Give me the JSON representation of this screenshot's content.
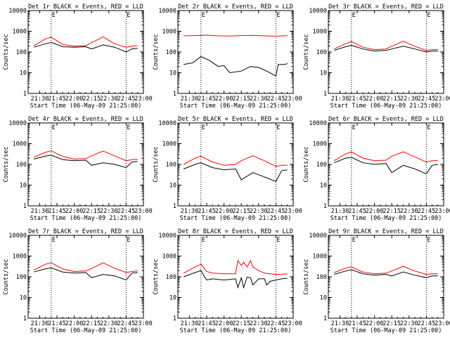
{
  "colors": {
    "events": "#000000",
    "lld": "#ff0000",
    "frame": "#000000",
    "background": "#ffffff"
  },
  "chart_data": [
    {
      "type": "line",
      "title": "Det 1r BLACK = Events, RED = LLD",
      "xlabel": "Start Time (06-May-09 21:25:00)",
      "ylabel": "Counts/sec",
      "x_tick_labels": [
        "21:30",
        "21:45",
        "22:00",
        "22:15",
        "22:30",
        "22:45",
        "23:00"
      ],
      "y_tick_labels": [
        "1",
        "10",
        "100",
        "1000",
        "10000"
      ],
      "yscale": "log",
      "ylim": [
        1,
        10000
      ],
      "xlim_min": [
        -5,
        95
      ],
      "markers": [
        15,
        80
      ],
      "marker_label": "E",
      "series": [
        {
          "color": "#000000",
          "min": [
            0,
            10,
            15,
            25,
            35,
            45,
            50,
            60,
            70,
            80,
            85,
            90
          ],
          "values": [
            170,
            250,
            290,
            180,
            170,
            180,
            140,
            220,
            170,
            100,
            140,
            150
          ]
        },
        {
          "color": "#ff0000",
          "min": [
            0,
            10,
            15,
            25,
            35,
            45,
            50,
            60,
            70,
            80,
            85,
            90
          ],
          "values": [
            200,
            430,
            520,
            230,
            190,
            200,
            280,
            540,
            250,
            170,
            190,
            200
          ]
        }
      ]
    },
    {
      "type": "line",
      "title": "Det 2r BLACK = Events, RED = LLD",
      "xlabel": "Start Time (06-May-09 21:25:00)",
      "ylabel": "Counts/sec",
      "x_tick_labels": [
        "21:30",
        "21:45",
        "22:00",
        "22:15",
        "22:30",
        "22:45",
        "23:00"
      ],
      "y_tick_labels": [
        "1",
        "10",
        "100",
        "1000",
        "10000"
      ],
      "yscale": "log",
      "ylim": [
        1,
        10000
      ],
      "xlim_min": [
        -5,
        95
      ],
      "markers": [
        15,
        80
      ],
      "marker_label": "E",
      "series": [
        {
          "color": "#000000",
          "min": [
            0,
            8,
            15,
            22,
            30,
            35,
            40,
            50,
            58,
            65,
            72,
            80,
            82,
            88,
            90
          ],
          "values": [
            25,
            30,
            60,
            40,
            20,
            22,
            10,
            12,
            20,
            18,
            12,
            7,
            25,
            25,
            28
          ]
        },
        {
          "color": "#ff0000",
          "min": [
            0,
            10,
            20,
            30,
            40,
            50,
            60,
            70,
            80,
            90
          ],
          "values": [
            600,
            620,
            650,
            600,
            590,
            620,
            640,
            600,
            580,
            620
          ]
        }
      ]
    },
    {
      "type": "line",
      "title": "Det 3r BLACK = Events, RED = LLD",
      "xlabel": "Start Time (06-May-09 21:25:00)",
      "ylabel": "Counts/sec",
      "x_tick_labels": [
        "21:30",
        "21:45",
        "22:00",
        "22:15",
        "22:30",
        "22:45",
        "23:00"
      ],
      "y_tick_labels": [
        "1",
        "10",
        "100",
        "1000",
        "10000"
      ],
      "yscale": "log",
      "ylim": [
        1,
        10000
      ],
      "xlim_min": [
        -5,
        95
      ],
      "markers": [
        15,
        80
      ],
      "marker_label": "E",
      "series": [
        {
          "color": "#000000",
          "min": [
            0,
            10,
            15,
            25,
            35,
            45,
            50,
            60,
            70,
            80,
            85,
            90
          ],
          "values": [
            120,
            180,
            210,
            140,
            110,
            120,
            140,
            190,
            140,
            100,
            110,
            110
          ]
        },
        {
          "color": "#ff0000",
          "min": [
            0,
            10,
            15,
            25,
            35,
            45,
            50,
            60,
            70,
            80,
            85,
            90
          ],
          "values": [
            140,
            250,
            320,
            170,
            130,
            140,
            190,
            330,
            190,
            120,
            130,
            130
          ]
        }
      ]
    },
    {
      "type": "line",
      "title": "Det 4r BLACK = Events, RED = LLD",
      "xlabel": "Start Time (06-May-09 21:25:00)",
      "ylabel": "Counts/sec",
      "x_tick_labels": [
        "21:30",
        "21:45",
        "22:00",
        "22:15",
        "22:30",
        "22:45",
        "23:00"
      ],
      "y_tick_labels": [
        "1",
        "10",
        "100",
        "1000",
        "10000"
      ],
      "yscale": "log",
      "ylim": [
        1,
        10000
      ],
      "xlim_min": [
        -5,
        95
      ],
      "markers": [
        15,
        80
      ],
      "marker_label": "E",
      "series": [
        {
          "color": "#000000",
          "min": [
            0,
            10,
            15,
            25,
            35,
            45,
            50,
            60,
            70,
            80,
            85,
            90
          ],
          "values": [
            180,
            250,
            280,
            170,
            150,
            160,
            90,
            120,
            100,
            70,
            130,
            140
          ]
        },
        {
          "color": "#ff0000",
          "min": [
            0,
            10,
            15,
            25,
            35,
            45,
            50,
            60,
            70,
            80,
            85,
            90
          ],
          "values": [
            220,
            380,
            450,
            240,
            180,
            190,
            260,
            440,
            260,
            150,
            170,
            180
          ]
        }
      ]
    },
    {
      "type": "line",
      "title": "Det 5r BLACK = Events, RED = LLD",
      "xlabel": "Start Time (06-May-09 21:25:00)",
      "ylabel": "Counts/sec",
      "x_tick_labels": [
        "21:30",
        "21:45",
        "22:00",
        "22:15",
        "22:30",
        "22:45",
        "23:00"
      ],
      "y_tick_labels": [
        "1",
        "10",
        "100",
        "1000",
        "10000"
      ],
      "yscale": "log",
      "ylim": [
        1,
        10000
      ],
      "xlim_min": [
        -5,
        95
      ],
      "markers": [
        15,
        80
      ],
      "marker_label": "E",
      "series": [
        {
          "color": "#000000",
          "min": [
            0,
            10,
            15,
            25,
            35,
            45,
            50,
            60,
            70,
            80,
            85,
            90
          ],
          "values": [
            60,
            100,
            120,
            70,
            55,
            60,
            18,
            40,
            25,
            15,
            50,
            55
          ]
        },
        {
          "color": "#ff0000",
          "min": [
            0,
            10,
            15,
            25,
            35,
            45,
            50,
            60,
            70,
            80,
            85,
            90
          ],
          "values": [
            100,
            200,
            250,
            130,
            90,
            100,
            150,
            260,
            150,
            80,
            90,
            90
          ]
        }
      ]
    },
    {
      "type": "line",
      "title": "Det 6r BLACK = Events, RED = LLD",
      "xlabel": "Start Time (06-May-09 21:25:00)",
      "ylabel": "Counts/sec",
      "x_tick_labels": [
        "21:30",
        "21:45",
        "22:00",
        "22:15",
        "22:30",
        "22:45",
        "23:00"
      ],
      "y_tick_labels": [
        "1",
        "10",
        "100",
        "1000",
        "10000"
      ],
      "yscale": "log",
      "ylim": [
        1,
        10000
      ],
      "xlim_min": [
        -5,
        95
      ],
      "markers": [
        15,
        80
      ],
      "marker_label": "E",
      "series": [
        {
          "color": "#000000",
          "min": [
            0,
            10,
            15,
            25,
            35,
            45,
            50,
            60,
            70,
            80,
            85,
            90
          ],
          "values": [
            120,
            200,
            220,
            120,
            100,
            110,
            40,
            90,
            60,
            35,
            90,
            100
          ]
        },
        {
          "color": "#ff0000",
          "min": [
            0,
            10,
            15,
            25,
            35,
            45,
            50,
            60,
            70,
            80,
            85,
            90
          ],
          "values": [
            150,
            320,
            400,
            200,
            150,
            160,
            250,
            400,
            230,
            130,
            150,
            150
          ]
        }
      ]
    },
    {
      "type": "line",
      "title": "Det 7r BLACK = Events, RED = LLD",
      "xlabel": "Start Time (06-May-09 21:25:00)",
      "ylabel": "Counts/sec",
      "x_tick_labels": [
        "21:30",
        "21:45",
        "22:00",
        "22:15",
        "22:30",
        "22:45",
        "23:00"
      ],
      "y_tick_labels": [
        "1",
        "10",
        "100",
        "1000",
        "10000"
      ],
      "yscale": "log",
      "ylim": [
        1,
        10000
      ],
      "xlim_min": [
        -5,
        95
      ],
      "markers": [
        15,
        80
      ],
      "marker_label": "E",
      "series": [
        {
          "color": "#000000",
          "min": [
            0,
            10,
            15,
            25,
            35,
            45,
            50,
            60,
            70,
            80,
            85,
            90
          ],
          "values": [
            170,
            240,
            270,
            170,
            150,
            160,
            90,
            130,
            110,
            70,
            150,
            160
          ]
        },
        {
          "color": "#ff0000",
          "min": [
            0,
            10,
            15,
            25,
            35,
            45,
            50,
            60,
            70,
            80,
            85,
            90
          ],
          "values": [
            210,
            400,
            480,
            240,
            180,
            190,
            250,
            470,
            260,
            160,
            180,
            190
          ]
        }
      ]
    },
    {
      "type": "line",
      "title": "Det 8r BLACK = Events, RED = LLD",
      "xlabel": "Start Time (06-May-09 21:25:00)",
      "ylabel": "Counts/sec",
      "x_tick_labels": [
        "21:30",
        "21:45",
        "22:00",
        "22:15",
        "22:30",
        "22:45",
        "23:00"
      ],
      "y_tick_labels": [
        "1",
        "10",
        "100",
        "1000",
        "10000"
      ],
      "yscale": "log",
      "ylim": [
        1,
        10000
      ],
      "xlim_min": [
        -5,
        95
      ],
      "markers": [
        15,
        80
      ],
      "marker_label": "E",
      "series": [
        {
          "color": "#000000",
          "min": [
            0,
            10,
            15,
            18,
            20,
            25,
            35,
            45,
            47,
            50,
            52,
            55,
            58,
            60,
            65,
            70,
            72,
            75,
            80,
            85,
            90
          ],
          "values": [
            100,
            160,
            200,
            100,
            70,
            80,
            70,
            80,
            30,
            90,
            30,
            95,
            90,
            40,
            80,
            80,
            40,
            60,
            70,
            80,
            85
          ]
        },
        {
          "color": "#ff0000",
          "min": [
            0,
            10,
            15,
            18,
            20,
            25,
            35,
            45,
            47,
            50,
            52,
            55,
            58,
            60,
            65,
            70,
            75,
            80,
            85,
            90
          ],
          "values": [
            150,
            300,
            400,
            250,
            180,
            150,
            140,
            140,
            600,
            350,
            500,
            300,
            600,
            300,
            200,
            150,
            140,
            130,
            130,
            140
          ]
        }
      ]
    },
    {
      "type": "line",
      "title": "Det 9r BLACK = Events, RED = LLD",
      "xlabel": "Start Time (06-May-09 21:25:00)",
      "ylabel": "Counts/sec",
      "x_tick_labels": [
        "21:30",
        "21:45",
        "22:00",
        "22:15",
        "22:30",
        "22:45",
        "23:00"
      ],
      "y_tick_labels": [
        "1",
        "10",
        "100",
        "1000",
        "10000"
      ],
      "yscale": "log",
      "ylim": [
        1,
        10000
      ],
      "xlim_min": [
        -5,
        95
      ],
      "markers": [
        15,
        80
      ],
      "marker_label": "E",
      "series": [
        {
          "color": "#000000",
          "min": [
            0,
            10,
            15,
            25,
            35,
            45,
            50,
            60,
            70,
            80,
            85,
            90
          ],
          "values": [
            130,
            190,
            220,
            140,
            120,
            130,
            110,
            170,
            120,
            90,
            110,
            110
          ]
        },
        {
          "color": "#ff0000",
          "min": [
            0,
            10,
            15,
            25,
            35,
            45,
            50,
            60,
            70,
            80,
            85,
            90
          ],
          "values": [
            160,
            260,
            300,
            170,
            140,
            150,
            190,
            320,
            190,
            130,
            140,
            140
          ]
        }
      ]
    }
  ]
}
